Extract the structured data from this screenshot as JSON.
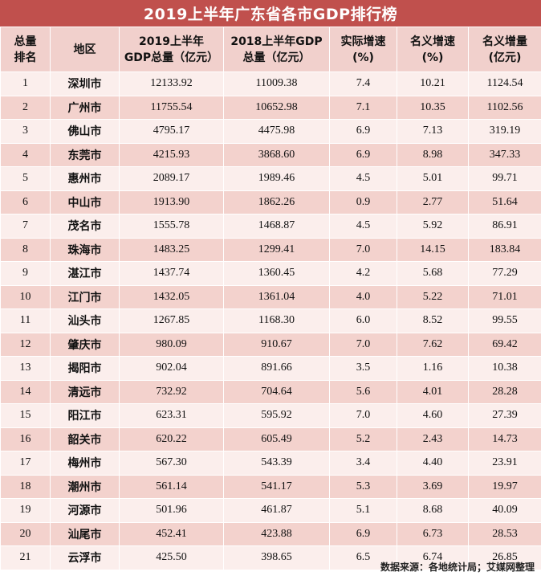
{
  "title": "2019上半年广东省各市GDP排行榜",
  "colors": {
    "title_bg": "#c0504d",
    "header_bg": "#f1d0cc",
    "row_light": "#fbeeec",
    "row_dark": "#f3d2cd"
  },
  "headers": {
    "rank": [
      "总量",
      "排名"
    ],
    "region": [
      "地区"
    ],
    "gdp2019": [
      "2019上半年",
      "GDP总量（亿元）"
    ],
    "gdp2018": [
      "2018上半年GDP",
      "总量（亿元）"
    ],
    "real_growth": [
      "实际增速",
      "(%)"
    ],
    "nominal_growth": [
      "名义增速",
      "(%)"
    ],
    "nominal_increase": [
      "名义增量",
      "(亿元)"
    ]
  },
  "rows": [
    {
      "rank": "1",
      "city": "深圳市",
      "gdp2019": "12133.92",
      "gdp2018": "11009.38",
      "real_growth": "7.4",
      "nominal_growth": "10.21",
      "nominal_increase": "1124.54"
    },
    {
      "rank": "2",
      "city": "广州市",
      "gdp2019": "11755.54",
      "gdp2018": "10652.98",
      "real_growth": "7.1",
      "nominal_growth": "10.35",
      "nominal_increase": "1102.56"
    },
    {
      "rank": "3",
      "city": "佛山市",
      "gdp2019": "4795.17",
      "gdp2018": "4475.98",
      "real_growth": "6.9",
      "nominal_growth": "7.13",
      "nominal_increase": "319.19"
    },
    {
      "rank": "4",
      "city": "东莞市",
      "gdp2019": "4215.93",
      "gdp2018": "3868.60",
      "real_growth": "6.9",
      "nominal_growth": "8.98",
      "nominal_increase": "347.33"
    },
    {
      "rank": "5",
      "city": "惠州市",
      "gdp2019": "2089.17",
      "gdp2018": "1989.46",
      "real_growth": "4.5",
      "nominal_growth": "5.01",
      "nominal_increase": "99.71"
    },
    {
      "rank": "6",
      "city": "中山市",
      "gdp2019": "1913.90",
      "gdp2018": "1862.26",
      "real_growth": "0.9",
      "nominal_growth": "2.77",
      "nominal_increase": "51.64"
    },
    {
      "rank": "7",
      "city": "茂名市",
      "gdp2019": "1555.78",
      "gdp2018": "1468.87",
      "real_growth": "4.5",
      "nominal_growth": "5.92",
      "nominal_increase": "86.91"
    },
    {
      "rank": "8",
      "city": "珠海市",
      "gdp2019": "1483.25",
      "gdp2018": "1299.41",
      "real_growth": "7.0",
      "nominal_growth": "14.15",
      "nominal_increase": "183.84"
    },
    {
      "rank": "9",
      "city": "湛江市",
      "gdp2019": "1437.74",
      "gdp2018": "1360.45",
      "real_growth": "4.2",
      "nominal_growth": "5.68",
      "nominal_increase": "77.29"
    },
    {
      "rank": "10",
      "city": "江门市",
      "gdp2019": "1432.05",
      "gdp2018": "1361.04",
      "real_growth": "4.0",
      "nominal_growth": "5.22",
      "nominal_increase": "71.01"
    },
    {
      "rank": "11",
      "city": "汕头市",
      "gdp2019": "1267.85",
      "gdp2018": "1168.30",
      "real_growth": "6.0",
      "nominal_growth": "8.52",
      "nominal_increase": "99.55"
    },
    {
      "rank": "12",
      "city": "肇庆市",
      "gdp2019": "980.09",
      "gdp2018": "910.67",
      "real_growth": "7.0",
      "nominal_growth": "7.62",
      "nominal_increase": "69.42"
    },
    {
      "rank": "13",
      "city": "揭阳市",
      "gdp2019": "902.04",
      "gdp2018": "891.66",
      "real_growth": "3.5",
      "nominal_growth": "1.16",
      "nominal_increase": "10.38"
    },
    {
      "rank": "14",
      "city": "清远市",
      "gdp2019": "732.92",
      "gdp2018": "704.64",
      "real_growth": "5.6",
      "nominal_growth": "4.01",
      "nominal_increase": "28.28"
    },
    {
      "rank": "15",
      "city": "阳江市",
      "gdp2019": "623.31",
      "gdp2018": "595.92",
      "real_growth": "7.0",
      "nominal_growth": "4.60",
      "nominal_increase": "27.39"
    },
    {
      "rank": "16",
      "city": "韶关市",
      "gdp2019": "620.22",
      "gdp2018": "605.49",
      "real_growth": "5.2",
      "nominal_growth": "2.43",
      "nominal_increase": "14.73"
    },
    {
      "rank": "17",
      "city": "梅州市",
      "gdp2019": "567.30",
      "gdp2018": "543.39",
      "real_growth": "3.4",
      "nominal_growth": "4.40",
      "nominal_increase": "23.91"
    },
    {
      "rank": "18",
      "city": "潮州市",
      "gdp2019": "561.14",
      "gdp2018": "541.17",
      "real_growth": "5.3",
      "nominal_growth": "3.69",
      "nominal_increase": "19.97"
    },
    {
      "rank": "19",
      "city": "河源市",
      "gdp2019": "501.96",
      "gdp2018": "461.87",
      "real_growth": "5.1",
      "nominal_growth": "8.68",
      "nominal_increase": "40.09"
    },
    {
      "rank": "20",
      "city": "汕尾市",
      "gdp2019": "452.41",
      "gdp2018": "423.88",
      "real_growth": "6.9",
      "nominal_growth": "6.73",
      "nominal_increase": "28.53"
    },
    {
      "rank": "21",
      "city": "云浮市",
      "gdp2019": "425.50",
      "gdp2018": "398.65",
      "real_growth": "6.5",
      "nominal_growth": "6.74",
      "nominal_increase": "26.85"
    }
  ],
  "source": "数据来源：各地统计局；艾媒网整理"
}
